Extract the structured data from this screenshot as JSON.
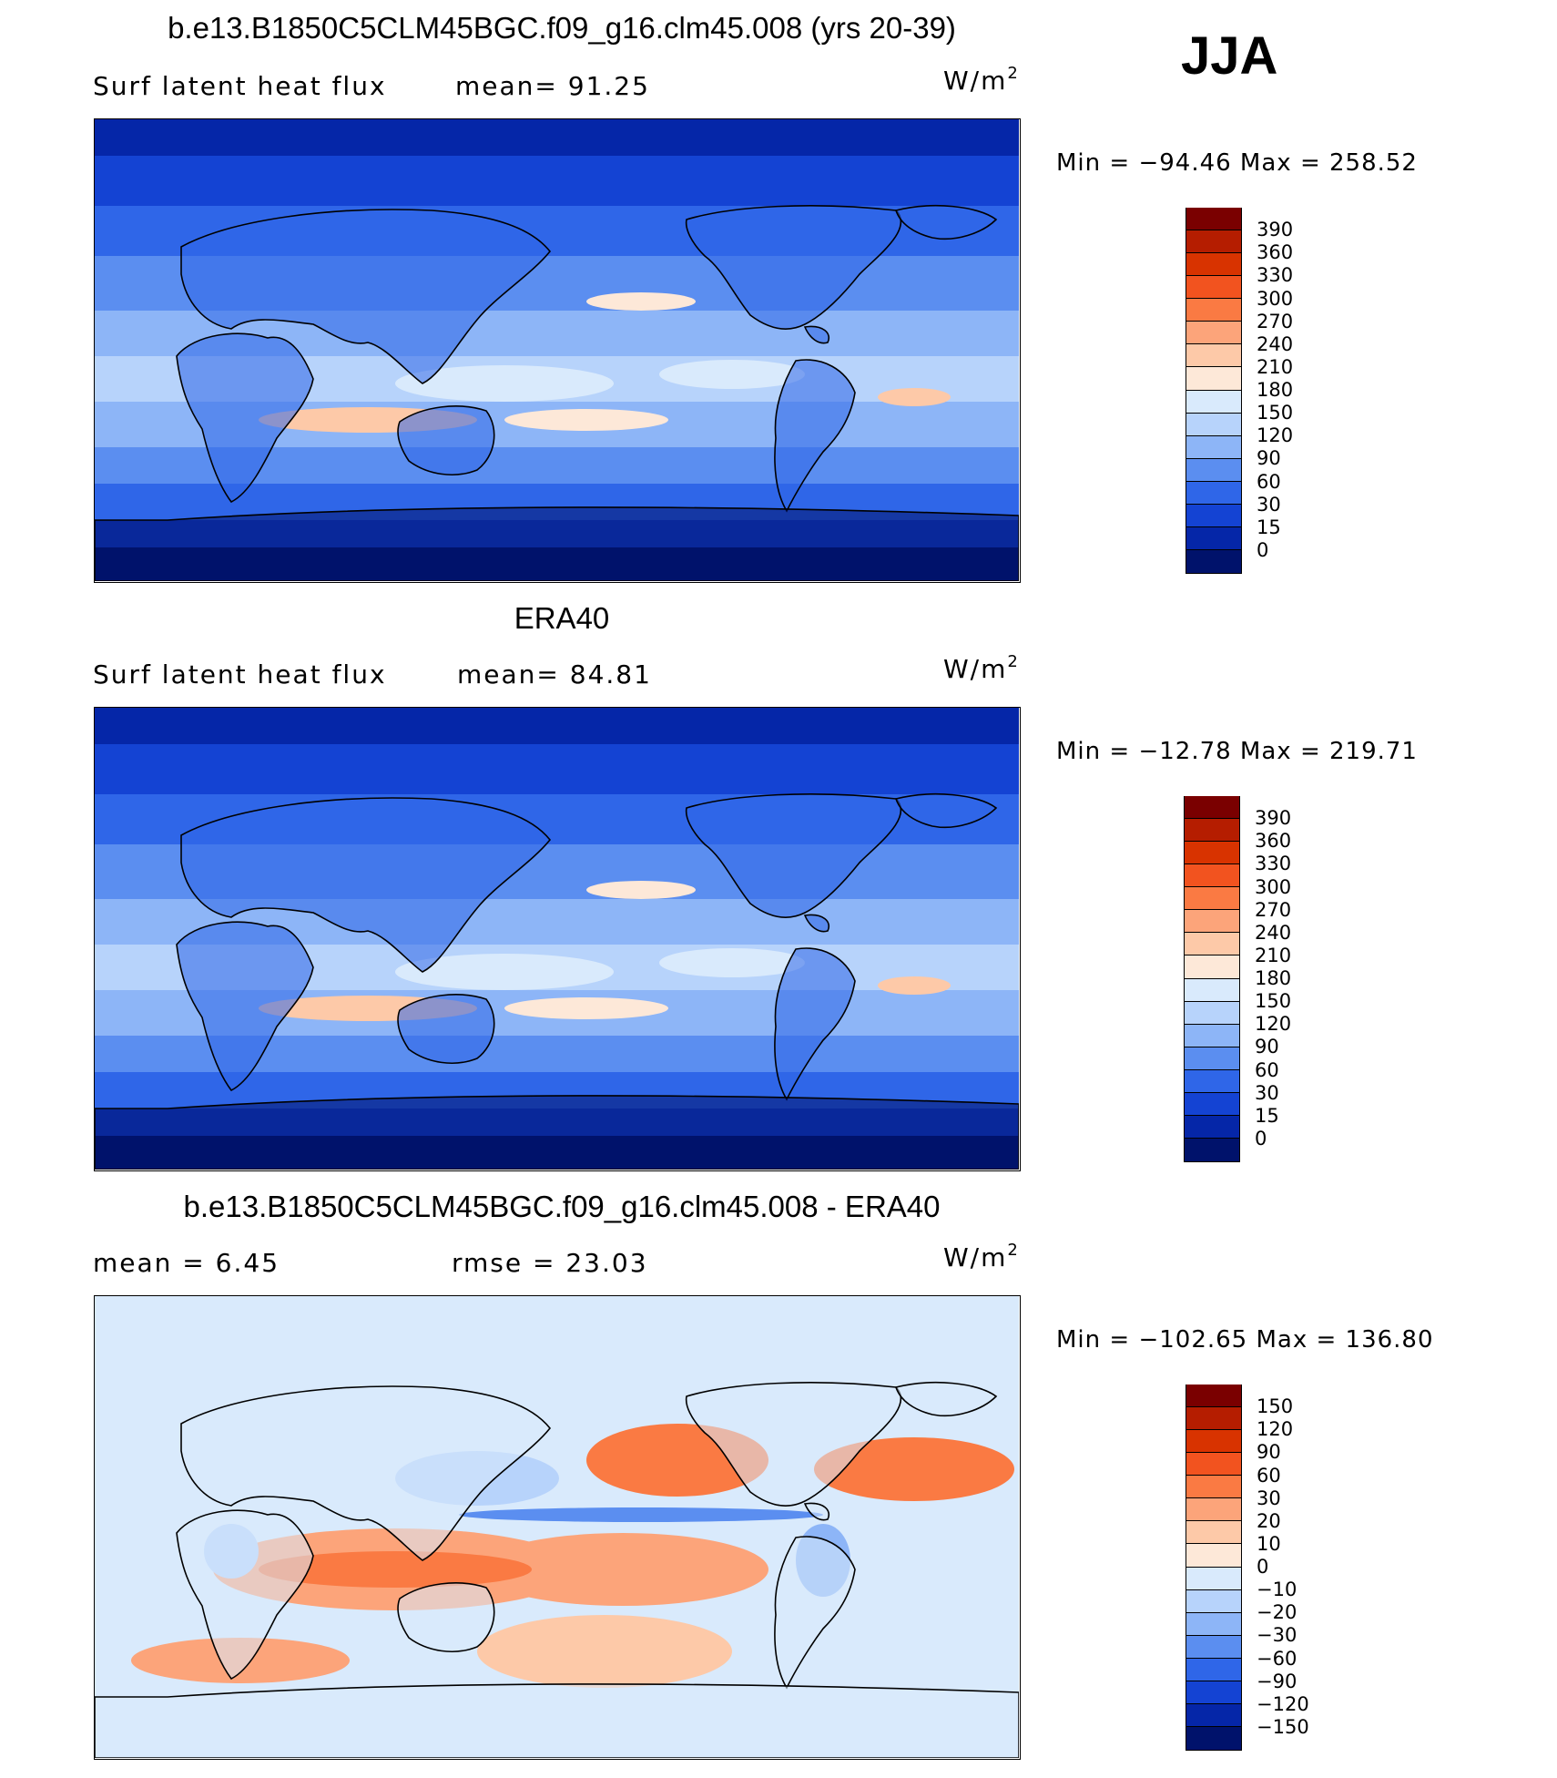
{
  "season": "JJA",
  "units": {
    "base": "W/m",
    "exp": "2"
  },
  "panels": [
    {
      "title": "b.e13.B1850C5CLM45BGC.f09_g16.clm45.008 (yrs 20-39)",
      "left_label": "Surf  latent  heat  flux",
      "right_label": "mean=   91.25",
      "min_max": "Min  =  −94.46  Max  =  258.52"
    },
    {
      "title": "ERA40",
      "left_label": "Surf  latent  heat  flux",
      "right_label": "mean=   84.81",
      "min_max": "Min  =  −12.78  Max  =  219.71"
    },
    {
      "title": "b.e13.B1850C5CLM45BGC.f09_g16.clm45.008 - ERA40",
      "left_label": "mean  =      6.45",
      "right_label": "rmse  =    23.03",
      "min_max": "Min  =  −102.65  Max  =  136.80"
    }
  ],
  "colorbars": {
    "absolute": {
      "levels": [
        "390",
        "360",
        "330",
        "300",
        "270",
        "240",
        "210",
        "180",
        "150",
        "120",
        "90",
        "60",
        "30",
        "15",
        "0"
      ],
      "colors": [
        "#7a0000",
        "#b51d00",
        "#d83300",
        "#f2531f",
        "#fa7a43",
        "#fca47a",
        "#fdc9a8",
        "#fde8d8",
        "#d9eafc",
        "#b7d3fb",
        "#8db5f7",
        "#5b8ef0",
        "#2f66e8",
        "#1443d3",
        "#0526a8",
        "#00126b"
      ]
    },
    "difference": {
      "levels": [
        "150",
        "120",
        "90",
        "60",
        "30",
        "20",
        "10",
        "0",
        "−10",
        "−20",
        "−30",
        "−60",
        "−90",
        "−120",
        "−150"
      ],
      "colors": [
        "#7a0000",
        "#b51d00",
        "#d83300",
        "#f2531f",
        "#fa7a43",
        "#fca47a",
        "#fdc9a8",
        "#fde8d8",
        "#d9eafc",
        "#b7d3fb",
        "#8db5f7",
        "#5b8ef0",
        "#2f66e8",
        "#1443d3",
        "#0526a8",
        "#00126b"
      ]
    }
  },
  "chart_data": [
    {
      "type": "heatmap",
      "title": "b.e13.B1850C5CLM45BGC.f09_g16.clm45.008 (yrs 20-39)",
      "variable": "Surf latent heat flux",
      "season": "JJA",
      "units": "W/m2",
      "mean": 91.25,
      "min": -94.46,
      "max": 258.52,
      "contour_levels": [
        0,
        15,
        30,
        60,
        90,
        120,
        150,
        180,
        210,
        240,
        270,
        300,
        330,
        360,
        390
      ]
    },
    {
      "type": "heatmap",
      "title": "ERA40",
      "variable": "Surf latent heat flux",
      "season": "JJA",
      "units": "W/m2",
      "mean": 84.81,
      "min": -12.78,
      "max": 219.71,
      "contour_levels": [
        0,
        15,
        30,
        60,
        90,
        120,
        150,
        180,
        210,
        240,
        270,
        300,
        330,
        360,
        390
      ]
    },
    {
      "type": "heatmap",
      "title": "b.e13.B1850C5CLM45BGC.f09_g16.clm45.008 - ERA40",
      "season": "JJA",
      "units": "W/m2",
      "mean": 6.45,
      "rmse": 23.03,
      "min": -102.65,
      "max": 136.8,
      "contour_levels": [
        -150,
        -120,
        -90,
        -60,
        -30,
        -20,
        -10,
        0,
        10,
        20,
        30,
        60,
        90,
        120,
        150
      ]
    }
  ]
}
